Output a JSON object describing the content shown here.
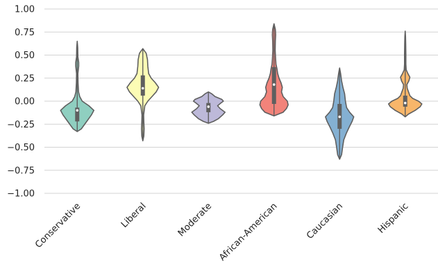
{
  "chart_data": {
    "type": "violin",
    "title": "",
    "xlabel": "",
    "ylabel": "",
    "ylim": [
      -1.0,
      1.0
    ],
    "yticks": [
      1.0,
      0.75,
      0.5,
      0.25,
      0.0,
      -0.25,
      -0.5,
      -0.75,
      -1.0
    ],
    "ytick_labels": [
      "1.00",
      "0.75",
      "0.50",
      "0.25",
      "0.00",
      "−0.25",
      "−0.50",
      "−0.75",
      "−1.00"
    ],
    "grid": true,
    "categories": [
      "Conservative",
      "Liberal",
      "Moderate",
      "African-American",
      "Caucasian",
      "Hispanic"
    ],
    "colors": [
      "#8fcfc0",
      "#fcfcb5",
      "#bdb9d9",
      "#f2837a",
      "#84b0d2",
      "#f8b66a"
    ],
    "edge_color": "#5f5f5f",
    "violins": [
      {
        "category": "Conservative",
        "min": -0.33,
        "q1": -0.22,
        "median": -0.1,
        "q3": -0.07,
        "max": 0.65,
        "profile": [
          [
            -0.33,
            0.0
          ],
          [
            -0.3,
            0.25
          ],
          [
            -0.25,
            0.45
          ],
          [
            -0.2,
            0.65
          ],
          [
            -0.15,
            0.85
          ],
          [
            -0.1,
            1.0
          ],
          [
            -0.05,
            0.7
          ],
          [
            0.0,
            0.3
          ],
          [
            0.05,
            0.15
          ],
          [
            0.1,
            0.08
          ],
          [
            0.2,
            0.05
          ],
          [
            0.3,
            0.04
          ],
          [
            0.38,
            0.09
          ],
          [
            0.42,
            0.09
          ],
          [
            0.48,
            0.04
          ],
          [
            0.58,
            0.03
          ],
          [
            0.65,
            0.0
          ]
        ]
      },
      {
        "category": "Liberal",
        "min": -0.43,
        "q1": 0.06,
        "median": 0.14,
        "q3": 0.28,
        "max": 0.57,
        "profile": [
          [
            -0.43,
            0.0
          ],
          [
            -0.38,
            0.06
          ],
          [
            -0.3,
            0.08
          ],
          [
            -0.22,
            0.06
          ],
          [
            -0.15,
            0.05
          ],
          [
            -0.05,
            0.12
          ],
          [
            0.0,
            0.3
          ],
          [
            0.05,
            0.55
          ],
          [
            0.1,
            0.8
          ],
          [
            0.15,
            0.95
          ],
          [
            0.2,
            0.75
          ],
          [
            0.25,
            0.5
          ],
          [
            0.3,
            0.35
          ],
          [
            0.38,
            0.3
          ],
          [
            0.45,
            0.28
          ],
          [
            0.52,
            0.2
          ],
          [
            0.57,
            0.0
          ]
        ]
      },
      {
        "category": "Moderate",
        "min": -0.24,
        "q1": -0.12,
        "median": -0.06,
        "q3": -0.02,
        "max": 0.1,
        "profile": [
          [
            -0.24,
            0.0
          ],
          [
            -0.22,
            0.3
          ],
          [
            -0.19,
            0.6
          ],
          [
            -0.15,
            0.85
          ],
          [
            -0.12,
            1.0
          ],
          [
            -0.08,
            0.7
          ],
          [
            -0.05,
            0.55
          ],
          [
            -0.02,
            0.75
          ],
          [
            0.0,
            0.9
          ],
          [
            0.02,
            0.8
          ],
          [
            0.05,
            0.4
          ],
          [
            0.08,
            0.2
          ],
          [
            0.1,
            0.0
          ]
        ]
      },
      {
        "category": "African-American",
        "min": -0.16,
        "q1": -0.03,
        "median": 0.18,
        "q3": 0.37,
        "max": 0.84,
        "profile": [
          [
            -0.16,
            0.0
          ],
          [
            -0.12,
            0.55
          ],
          [
            -0.08,
            0.75
          ],
          [
            -0.04,
            0.85
          ],
          [
            0.0,
            0.8
          ],
          [
            0.05,
            0.55
          ],
          [
            0.1,
            0.45
          ],
          [
            0.15,
            0.5
          ],
          [
            0.2,
            0.42
          ],
          [
            0.25,
            0.3
          ],
          [
            0.3,
            0.22
          ],
          [
            0.35,
            0.18
          ],
          [
            0.4,
            0.12
          ],
          [
            0.45,
            0.1
          ],
          [
            0.55,
            0.07
          ],
          [
            0.65,
            0.08
          ],
          [
            0.72,
            0.1
          ],
          [
            0.78,
            0.08
          ],
          [
            0.84,
            0.0
          ]
        ]
      },
      {
        "category": "Caucasian",
        "min": -0.63,
        "q1": -0.3,
        "median": -0.17,
        "q3": -0.03,
        "max": 0.36,
        "profile": [
          [
            -0.63,
            0.0
          ],
          [
            -0.58,
            0.12
          ],
          [
            -0.5,
            0.18
          ],
          [
            -0.42,
            0.25
          ],
          [
            -0.35,
            0.4
          ],
          [
            -0.28,
            0.58
          ],
          [
            -0.22,
            0.75
          ],
          [
            -0.17,
            0.85
          ],
          [
            -0.12,
            0.6
          ],
          [
            -0.07,
            0.42
          ],
          [
            0.0,
            0.35
          ],
          [
            0.08,
            0.3
          ],
          [
            0.15,
            0.2
          ],
          [
            0.22,
            0.12
          ],
          [
            0.3,
            0.06
          ],
          [
            0.36,
            0.0
          ]
        ]
      },
      {
        "category": "Hispanic",
        "min": -0.17,
        "q1": -0.06,
        "median": -0.02,
        "q3": 0.06,
        "max": 0.76,
        "profile": [
          [
            -0.17,
            0.0
          ],
          [
            -0.14,
            0.2
          ],
          [
            -0.1,
            0.6
          ],
          [
            -0.06,
            0.9
          ],
          [
            -0.03,
            1.0
          ],
          [
            0.0,
            0.8
          ],
          [
            0.03,
            0.45
          ],
          [
            0.06,
            0.28
          ],
          [
            0.1,
            0.2
          ],
          [
            0.14,
            0.12
          ],
          [
            0.18,
            0.1
          ],
          [
            0.22,
            0.22
          ],
          [
            0.26,
            0.28
          ],
          [
            0.3,
            0.16
          ],
          [
            0.34,
            0.06
          ],
          [
            0.4,
            0.04
          ],
          [
            0.5,
            0.04
          ],
          [
            0.62,
            0.03
          ],
          [
            0.7,
            0.02
          ],
          [
            0.76,
            0.0
          ]
        ]
      }
    ]
  }
}
